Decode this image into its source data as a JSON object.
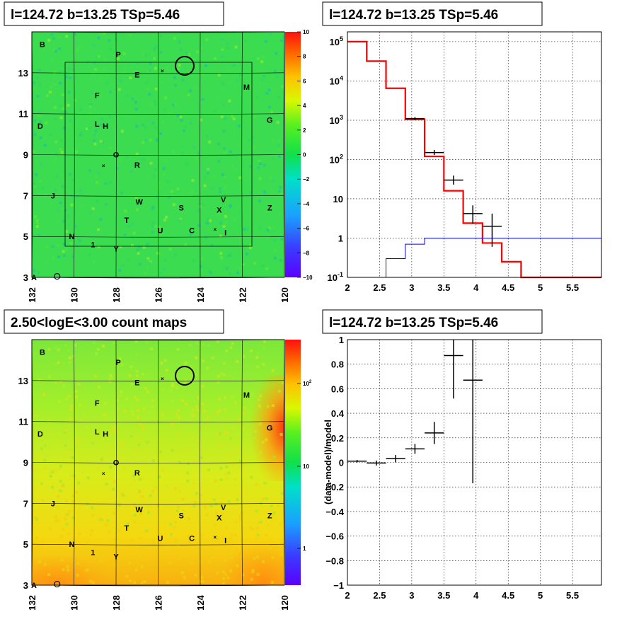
{
  "titles": {
    "tl": "l=124.72 b=13.25 TSp=5.46",
    "tr": "l=124.72 b=13.25 TSp=5.46",
    "bl": "2.50<logE<3.00 count maps",
    "br": "l=124.72 b=13.25 TSp=5.46"
  },
  "chart_data": [
    {
      "type": "heatmap",
      "panel": "residual-significance-map",
      "xlim": [
        132,
        120
      ],
      "ylim": [
        3,
        15
      ],
      "x_ticks": [
        "132",
        "130",
        "128",
        "126",
        "124",
        "122",
        "120"
      ],
      "y_ticks": [
        "3",
        "5",
        "7",
        "9",
        "11",
        "13"
      ],
      "colorbar": {
        "min": -10,
        "max": 10,
        "ticks": [
          "10",
          "8",
          "6",
          "4",
          "2",
          "0",
          "−2",
          "−4",
          "−6",
          "−8",
          "−10"
        ]
      },
      "source_labels": [
        {
          "t": "B",
          "x": 131.5,
          "y": 14.4
        },
        {
          "t": "P",
          "x": 127.9,
          "y": 13.9
        },
        {
          "t": "E",
          "x": 127.0,
          "y": 12.9
        },
        {
          "t": "M",
          "x": 121.8,
          "y": 12.3
        },
        {
          "t": "F",
          "x": 128.9,
          "y": 11.9
        },
        {
          "t": "D",
          "x": 131.6,
          "y": 10.4
        },
        {
          "t": "L",
          "x": 128.9,
          "y": 10.5
        },
        {
          "t": "H",
          "x": 128.5,
          "y": 10.4
        },
        {
          "t": "G",
          "x": 120.7,
          "y": 10.7
        },
        {
          "t": "O",
          "x": 128.0,
          "y": 9.0
        },
        {
          "t": "R",
          "x": 127.0,
          "y": 8.5
        },
        {
          "t": "J",
          "x": 131.0,
          "y": 7.0
        },
        {
          "t": "W",
          "x": 126.9,
          "y": 6.7
        },
        {
          "t": "S",
          "x": 124.9,
          "y": 6.4
        },
        {
          "t": "V",
          "x": 122.9,
          "y": 6.8
        },
        {
          "t": "X",
          "x": 123.1,
          "y": 6.3
        },
        {
          "t": "Z",
          "x": 120.7,
          "y": 6.4
        },
        {
          "t": "T",
          "x": 127.5,
          "y": 5.8
        },
        {
          "t": "U",
          "x": 125.9,
          "y": 5.3
        },
        {
          "t": "C",
          "x": 124.4,
          "y": 5.3
        },
        {
          "t": "I",
          "x": 122.8,
          "y": 5.2
        },
        {
          "t": "N",
          "x": 130.1,
          "y": 5.0
        },
        {
          "t": "1",
          "x": 129.1,
          "y": 4.6
        },
        {
          "t": "Y",
          "x": 128.0,
          "y": 4.4
        },
        {
          "t": "A",
          "x": 131.9,
          "y": 3.0
        }
      ]
    },
    {
      "type": "line",
      "panel": "spectrum",
      "x_ticks": [
        "2",
        "2.5",
        "3",
        "3.5",
        "4",
        "4.5",
        "5",
        "5.5"
      ],
      "y_ticks": [
        "10^-1",
        "1",
        "10",
        "10^2",
        "10^3",
        "10^4",
        "10^5"
      ],
      "xlim": [
        2.0,
        5.95
      ],
      "ylim_log10": [
        -1,
        5.25
      ],
      "series": [
        {
          "color": "#ff0000",
          "bins": [
            [
              2.0,
              2.3,
              100000
            ],
            [
              2.3,
              2.6,
              32000
            ],
            [
              2.6,
              2.9,
              6500
            ],
            [
              2.9,
              3.2,
              1050
            ],
            [
              3.2,
              3.5,
              120
            ],
            [
              3.5,
              3.8,
              16
            ],
            [
              3.8,
              4.1,
              2.4
            ],
            [
              4.1,
              4.4,
              0.75
            ],
            [
              4.4,
              4.7,
              0.25
            ],
            [
              4.7,
              5.95,
              0.1
            ]
          ]
        },
        {
          "color": "#0000ff",
          "bins": [
            [
              2.6,
              2.9,
              0.3
            ],
            [
              2.9,
              3.2,
              0.7
            ],
            [
              3.2,
              5.95,
              1.0
            ]
          ]
        }
      ],
      "data_points": [
        {
          "x": 3.05,
          "y": 1100,
          "xerr": 0.15,
          "ylo": 1000,
          "yhi": 1200
        },
        {
          "x": 3.35,
          "y": 150,
          "xerr": 0.15,
          "ylo": 130,
          "yhi": 175
        },
        {
          "x": 3.65,
          "y": 30,
          "xerr": 0.15,
          "ylo": 23,
          "yhi": 39
        },
        {
          "x": 3.95,
          "y": 4.2,
          "xerr": 0.15,
          "ylo": 2.3,
          "yhi": 6.8
        },
        {
          "x": 4.25,
          "y": 2.0,
          "xerr": 0.15,
          "ylo": 0.6,
          "yhi": 4.2
        }
      ]
    },
    {
      "type": "heatmap",
      "panel": "count-map",
      "xlim": [
        132,
        120
      ],
      "ylim": [
        3,
        15
      ],
      "x_ticks": [
        "132",
        "130",
        "128",
        "126",
        "124",
        "122",
        "120"
      ],
      "y_ticks": [
        "3",
        "5",
        "7",
        "9",
        "11",
        "13"
      ],
      "colorbar": {
        "scale": "log",
        "ticks": [
          "10^2",
          "10",
          "1"
        ]
      }
    },
    {
      "type": "scatter",
      "panel": "residuals",
      "ylabel": "(data-model)/model",
      "x_ticks": [
        "2",
        "2.5",
        "3",
        "3.5",
        "4",
        "4.5",
        "5",
        "5.5"
      ],
      "y_ticks": [
        "1",
        "0.8",
        "0.6",
        "0.4",
        "0.2",
        "0",
        "−0.2",
        "−0.4",
        "−0.6",
        "−0.8",
        "−1"
      ],
      "xlim": [
        2.0,
        5.95
      ],
      "ylim": [
        -1,
        1
      ],
      "points": [
        {
          "x": 2.15,
          "y": 0.01,
          "xerr": 0.15,
          "yerr": 0.01
        },
        {
          "x": 2.45,
          "y": -0.005,
          "xerr": 0.15,
          "yerr": 0.02
        },
        {
          "x": 2.75,
          "y": 0.03,
          "xerr": 0.15,
          "yerr": 0.03
        },
        {
          "x": 3.05,
          "y": 0.11,
          "xerr": 0.15,
          "yerr": 0.04
        },
        {
          "x": 3.35,
          "y": 0.24,
          "xerr": 0.15,
          "yerr": 0.09
        },
        {
          "x": 3.65,
          "y": 0.87,
          "xerr": 0.15,
          "yerr": 0.35
        },
        {
          "x": 3.95,
          "y": 0.67,
          "xerr": 0.15,
          "yerr": 0.84
        }
      ]
    }
  ]
}
